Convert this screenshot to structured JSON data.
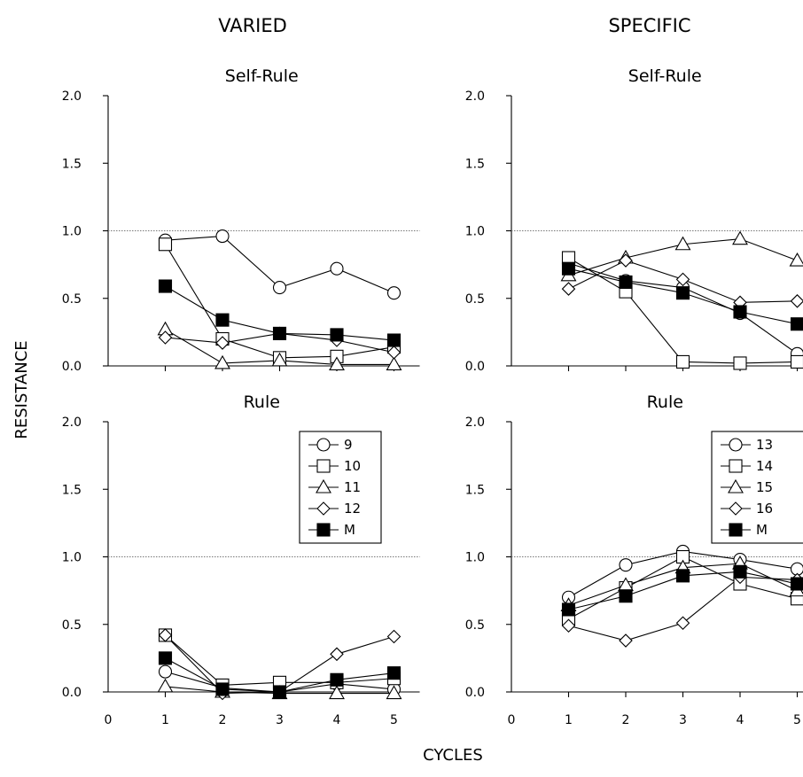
{
  "figure": {
    "column_titles": [
      "VARIED",
      "SPECIFIC"
    ],
    "ylabel": "RESISTANCE",
    "xlabel": "CYCLES"
  },
  "chart_data": [
    {
      "type": "line",
      "column": "VARIED",
      "title": "Self-Rule",
      "x": [
        1,
        2,
        3,
        4,
        5
      ],
      "xlim": [
        0,
        5
      ],
      "ylim": [
        0,
        2
      ],
      "yticks": [
        "0.0",
        "0.5",
        "1.0",
        "1.5",
        "2.0"
      ],
      "xticks": [],
      "reference_line": 1.0,
      "legend": null,
      "series": [
        {
          "name": "9",
          "marker": "circle",
          "values": [
            0.93,
            0.96,
            0.58,
            0.72,
            0.54
          ]
        },
        {
          "name": "10",
          "marker": "square",
          "values": [
            0.9,
            0.2,
            0.06,
            0.07,
            0.14
          ]
        },
        {
          "name": "11",
          "marker": "triangle",
          "values": [
            0.27,
            0.02,
            0.04,
            0.01,
            0.01
          ]
        },
        {
          "name": "12",
          "marker": "diamond",
          "values": [
            0.21,
            0.17,
            0.24,
            0.19,
            0.1
          ]
        },
        {
          "name": "M",
          "marker": "filled-square",
          "values": [
            0.59,
            0.34,
            0.24,
            0.23,
            0.19
          ]
        }
      ]
    },
    {
      "type": "line",
      "column": "SPECIFIC",
      "title": "Self-Rule",
      "x": [
        1,
        2,
        3,
        4,
        5
      ],
      "xlim": [
        0,
        5
      ],
      "ylim": [
        0,
        2
      ],
      "yticks": [
        "0.0",
        "0.5",
        "1.0",
        "1.5",
        "2.0"
      ],
      "xticks": [],
      "reference_line": 1.0,
      "legend": null,
      "series": [
        {
          "name": "13",
          "marker": "circle",
          "values": [
            0.76,
            0.63,
            0.58,
            0.39,
            0.09
          ]
        },
        {
          "name": "14",
          "marker": "square",
          "values": [
            0.8,
            0.55,
            0.03,
            0.02,
            0.03
          ]
        },
        {
          "name": "15",
          "marker": "triangle",
          "values": [
            0.67,
            0.8,
            0.9,
            0.94,
            0.78
          ]
        },
        {
          "name": "16",
          "marker": "diamond",
          "values": [
            0.57,
            0.78,
            0.64,
            0.47,
            0.48
          ]
        },
        {
          "name": "M",
          "marker": "filled-square",
          "values": [
            0.72,
            0.62,
            0.54,
            0.4,
            0.31
          ]
        }
      ]
    },
    {
      "type": "line",
      "column": "VARIED",
      "title": "Rule",
      "x": [
        1,
        2,
        3,
        4,
        5
      ],
      "xlim": [
        0,
        5
      ],
      "ylim": [
        0,
        2
      ],
      "yticks": [
        "0.0",
        "0.5",
        "1.0",
        "1.5",
        "2.0"
      ],
      "xticks": [
        "0",
        "1",
        "2",
        "3",
        "4",
        "5"
      ],
      "reference_line": 1.0,
      "legend": "top-right",
      "series": [
        {
          "name": "9",
          "marker": "circle",
          "values": [
            0.15,
            0.03,
            0.0,
            0.06,
            0.02
          ]
        },
        {
          "name": "10",
          "marker": "square",
          "values": [
            0.42,
            0.05,
            0.07,
            0.07,
            0.1
          ]
        },
        {
          "name": "11",
          "marker": "triangle",
          "values": [
            0.04,
            0.0,
            -0.01,
            -0.01,
            -0.01
          ]
        },
        {
          "name": "12",
          "marker": "diamond",
          "values": [
            0.42,
            -0.01,
            0.0,
            0.28,
            0.41
          ]
        },
        {
          "name": "M",
          "marker": "filled-square",
          "values": [
            0.25,
            0.02,
            0.0,
            0.09,
            0.14
          ]
        }
      ]
    },
    {
      "type": "line",
      "column": "SPECIFIC",
      "title": "Rule",
      "x": [
        1,
        2,
        3,
        4,
        5
      ],
      "xlim": [
        0,
        5
      ],
      "ylim": [
        0,
        2
      ],
      "yticks": [
        "0.0",
        "0.5",
        "1.0",
        "1.5",
        "2.0"
      ],
      "xticks": [
        "0",
        "1",
        "2",
        "3",
        "4",
        "5"
      ],
      "reference_line": 1.0,
      "legend": "top-right",
      "series": [
        {
          "name": "13",
          "marker": "circle",
          "values": [
            0.7,
            0.94,
            1.04,
            0.98,
            0.91
          ]
        },
        {
          "name": "14",
          "marker": "square",
          "values": [
            0.54,
            0.77,
            1.0,
            0.8,
            0.69
          ]
        },
        {
          "name": "15",
          "marker": "triangle",
          "values": [
            0.64,
            0.79,
            0.92,
            0.95,
            0.75
          ]
        },
        {
          "name": "16",
          "marker": "diamond",
          "values": [
            0.49,
            0.38,
            0.51,
            0.85,
            0.83
          ]
        },
        {
          "name": "M",
          "marker": "filled-square",
          "values": [
            0.61,
            0.71,
            0.86,
            0.89,
            0.8
          ]
        }
      ]
    }
  ]
}
